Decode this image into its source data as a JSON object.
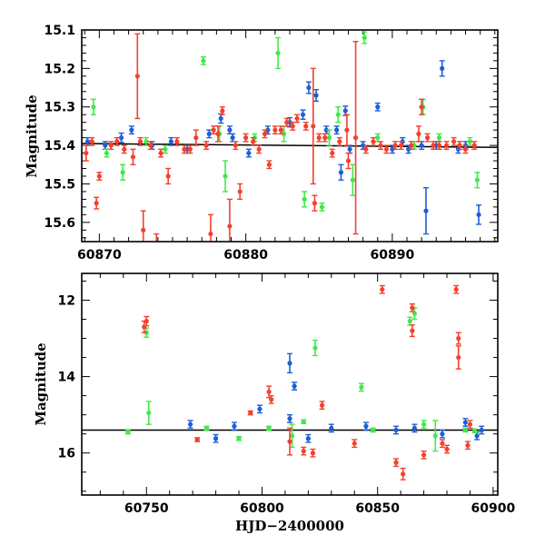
{
  "chart_data": [
    {
      "type": "scatter",
      "panel": "top",
      "title": "",
      "xlabel": "",
      "ylabel": "Magnitude",
      "xlim": [
        60868.8,
        60897.2
      ],
      "ylim": [
        15.1,
        15.65
      ],
      "y_inverted": true,
      "xticks": [
        60870,
        60880,
        60890
      ],
      "yticks": [
        15.1,
        15.2,
        15.3,
        15.4,
        15.5,
        15.6
      ],
      "ytick_labels": [
        "15.1",
        "15.2",
        "15.3",
        "15.4",
        "15.5",
        "15.6"
      ],
      "colors": {
        "blue": "#1d5fd6",
        "green": "#41e84a",
        "red": "#f2412d",
        "fit": "#000000"
      },
      "fit_line": {
        "x": [
          60868.8,
          60897.2
        ],
        "y": [
          15.395,
          15.405
        ]
      },
      "series": [
        {
          "color_key": "blue",
          "points": [
            [
              60869.2,
              15.39,
              0.01
            ],
            [
              60870.4,
              15.4,
              0.01
            ],
            [
              60871.5,
              15.38,
              0.012
            ],
            [
              60872.2,
              15.36,
              0.01
            ],
            [
              60873.6,
              15.4,
              0.01
            ],
            [
              60874.9,
              15.39,
              0.01
            ],
            [
              60876.0,
              15.41,
              0.01
            ],
            [
              60877.5,
              15.37,
              0.01
            ],
            [
              60878.3,
              15.33,
              0.012
            ],
            [
              60879.1,
              15.38,
              0.01
            ],
            [
              60880.2,
              15.42,
              0.01
            ],
            [
              60881.5,
              15.36,
              0.01
            ],
            [
              60883.0,
              15.34,
              0.012
            ],
            [
              60883.9,
              15.32,
              0.012
            ],
            [
              60884.3,
              15.25,
              0.015
            ],
            [
              60884.8,
              15.27,
              0.015
            ],
            [
              60885.5,
              15.36,
              0.01
            ],
            [
              60886.2,
              15.36,
              0.01
            ],
            [
              60886.8,
              15.31,
              0.012
            ],
            [
              60887.1,
              15.41,
              0.01
            ],
            [
              60888.0,
              15.4,
              0.01
            ],
            [
              60889.0,
              15.3,
              0.01
            ],
            [
              60890.0,
              15.41,
              0.01
            ],
            [
              60890.7,
              15.39,
              0.01
            ],
            [
              60891.1,
              15.41,
              0.01
            ],
            [
              60892.0,
              15.4,
              0.01
            ],
            [
              60892.3,
              15.57,
              0.06
            ],
            [
              60893.0,
              15.4,
              0.01
            ],
            [
              60893.4,
              15.2,
              0.02
            ],
            [
              60894.5,
              15.41,
              0.01
            ],
            [
              60895.0,
              15.4,
              0.01
            ],
            [
              60895.9,
              15.58,
              0.025
            ],
            [
              60886.5,
              15.47,
              0.02
            ],
            [
              60878.9,
              15.36,
              0.01
            ]
          ]
        },
        {
          "color_key": "green",
          "points": [
            [
              60869.6,
              15.3,
              0.02
            ],
            [
              60870.5,
              15.42,
              0.01
            ],
            [
              60871.6,
              15.47,
              0.02
            ],
            [
              60873.2,
              15.39,
              0.01
            ],
            [
              60874.5,
              15.41,
              0.01
            ],
            [
              60877.1,
              15.18,
              0.01
            ],
            [
              60878.2,
              15.37,
              0.02
            ],
            [
              60878.6,
              15.48,
              0.04
            ],
            [
              60880.6,
              15.38,
              0.01
            ],
            [
              60882.2,
              15.16,
              0.04
            ],
            [
              60882.6,
              15.37,
              0.02
            ],
            [
              60884.0,
              15.54,
              0.02
            ],
            [
              60885.2,
              15.56,
              0.01
            ],
            [
              60885.7,
              15.38,
              0.02
            ],
            [
              60886.3,
              15.32,
              0.02
            ],
            [
              60887.3,
              15.49,
              0.04
            ],
            [
              60888.1,
              15.12,
              0.015
            ],
            [
              60889.0,
              15.38,
              0.01
            ],
            [
              60891.5,
              15.4,
              0.01
            ],
            [
              60892.1,
              15.3,
              0.02
            ],
            [
              60893.2,
              15.38,
              0.01
            ],
            [
              60895.3,
              15.39,
              0.01
            ],
            [
              60895.8,
              15.49,
              0.02
            ]
          ]
        },
        {
          "color_key": "red",
          "points": [
            [
              60869.1,
              15.42,
              0.02
            ],
            [
              60869.5,
              15.39,
              0.01
            ],
            [
              60869.8,
              15.55,
              0.015
            ],
            [
              60870.0,
              15.48,
              0.01
            ],
            [
              60870.8,
              15.4,
              0.01
            ],
            [
              60871.2,
              15.39,
              0.01
            ],
            [
              60871.7,
              15.41,
              0.01
            ],
            [
              60872.3,
              15.43,
              0.02
            ],
            [
              60872.6,
              15.22,
              0.11
            ],
            [
              60872.8,
              15.39,
              0.01
            ],
            [
              60873.0,
              15.62,
              0.05
            ],
            [
              60873.5,
              15.4,
              0.01
            ],
            [
              60874.2,
              15.42,
              0.01
            ],
            [
              60874.7,
              15.48,
              0.02
            ],
            [
              60875.3,
              15.39,
              0.01
            ],
            [
              60875.8,
              15.41,
              0.01
            ],
            [
              60876.2,
              15.41,
              0.01
            ],
            [
              60876.6,
              15.38,
              0.02
            ],
            [
              60877.3,
              15.4,
              0.01
            ],
            [
              60877.8,
              15.36,
              0.01
            ],
            [
              60878.1,
              15.37,
              0.02
            ],
            [
              60878.4,
              15.31,
              0.01
            ],
            [
              60878.9,
              15.61,
              0.07
            ],
            [
              60879.3,
              15.4,
              0.01
            ],
            [
              60879.6,
              15.52,
              0.02
            ],
            [
              60880.0,
              15.38,
              0.01
            ],
            [
              60880.5,
              15.39,
              0.01
            ],
            [
              60880.9,
              15.41,
              0.01
            ],
            [
              60881.3,
              15.37,
              0.01
            ],
            [
              60881.6,
              15.45,
              0.01
            ],
            [
              60882.0,
              15.36,
              0.01
            ],
            [
              60882.4,
              15.36,
              0.01
            ],
            [
              60882.8,
              15.34,
              0.01
            ],
            [
              60883.2,
              15.35,
              0.01
            ],
            [
              60883.5,
              15.33,
              0.01
            ],
            [
              60884.1,
              15.35,
              0.01
            ],
            [
              60884.6,
              15.35,
              0.15
            ],
            [
              60884.7,
              15.55,
              0.02
            ],
            [
              60885.0,
              15.38,
              0.01
            ],
            [
              60885.4,
              15.38,
              0.01
            ],
            [
              60885.9,
              15.42,
              0.01
            ],
            [
              60886.4,
              15.39,
              0.01
            ],
            [
              60887.0,
              15.44,
              0.02
            ],
            [
              60887.5,
              15.38,
              0.25
            ],
            [
              60888.2,
              15.41,
              0.01
            ],
            [
              60888.7,
              15.39,
              0.01
            ],
            [
              60889.2,
              15.4,
              0.01
            ],
            [
              60889.6,
              15.41,
              0.01
            ],
            [
              60890.2,
              15.4,
              0.01
            ],
            [
              60890.6,
              15.4,
              0.01
            ],
            [
              60891.3,
              15.4,
              0.01
            ],
            [
              60891.8,
              15.37,
              0.02
            ],
            [
              60892.0,
              15.3,
              0.02
            ],
            [
              60892.4,
              15.38,
              0.01
            ],
            [
              60892.8,
              15.4,
              0.01
            ],
            [
              60893.2,
              15.4,
              0.01
            ],
            [
              60893.7,
              15.4,
              0.01
            ],
            [
              60894.2,
              15.39,
              0.01
            ],
            [
              60894.6,
              15.4,
              0.01
            ],
            [
              60895.0,
              15.41,
              0.01
            ],
            [
              60895.6,
              15.4,
              0.01
            ],
            [
              60886.9,
              15.36,
              0.04
            ],
            [
              60877.6,
              15.63,
              0.05
            ],
            [
              60873.9,
              15.68,
              0.05
            ]
          ]
        }
      ]
    },
    {
      "type": "scatter",
      "panel": "bottom",
      "title": "",
      "xlabel": "HJD−2400000",
      "ylabel": "Magnitude",
      "xlim": [
        60722,
        60902
      ],
      "ylim": [
        11.3,
        17.1
      ],
      "y_inverted": true,
      "xticks": [
        60750,
        60800,
        60850,
        60900
      ],
      "yticks": [
        12,
        14,
        16
      ],
      "ytick_labels": [
        "12",
        "14",
        "16"
      ],
      "colors": {
        "blue": "#1d5fd6",
        "green": "#41e84a",
        "red": "#f2412d",
        "fit": "#000000"
      },
      "fit_line": {
        "x": [
          60722,
          60902
        ],
        "y": [
          15.4,
          15.4
        ]
      },
      "series": [
        {
          "color_key": "blue",
          "points": [
            [
              60769,
              15.25,
              0.1
            ],
            [
              60780,
              15.62,
              0.1
            ],
            [
              60788,
              15.3,
              0.1
            ],
            [
              60799,
              14.85,
              0.1
            ],
            [
              60812,
              13.65,
              0.25
            ],
            [
              60814,
              14.25,
              0.1
            ],
            [
              60812,
              15.1,
              0.1
            ],
            [
              60820,
              15.62,
              0.1
            ],
            [
              60830,
              15.35,
              0.1
            ],
            [
              60845,
              15.3,
              0.1
            ],
            [
              60858,
              15.4,
              0.1
            ],
            [
              60866,
              15.35,
              0.1
            ],
            [
              60878,
              15.5,
              0.1
            ],
            [
              60888,
              15.2,
              0.1
            ],
            [
              60893,
              15.55,
              0.1
            ],
            [
              60895,
              15.4,
              0.1
            ]
          ]
        },
        {
          "color_key": "green",
          "points": [
            [
              60742,
              15.45,
              0.05
            ],
            [
              60750,
              12.85,
              0.12
            ],
            [
              60751,
              14.95,
              0.3
            ],
            [
              60776,
              15.35,
              0.05
            ],
            [
              60790,
              15.62,
              0.05
            ],
            [
              60803,
              15.35,
              0.05
            ],
            [
              60813,
              15.55,
              0.3
            ],
            [
              60818,
              15.18,
              0.05
            ],
            [
              60823,
              13.25,
              0.2
            ],
            [
              60843,
              14.28,
              0.1
            ],
            [
              60848,
              15.4,
              0.05
            ],
            [
              60864,
              12.55,
              0.1
            ],
            [
              60866,
              12.35,
              0.15
            ],
            [
              60870,
              15.25,
              0.1
            ],
            [
              60875,
              15.55,
              0.4
            ],
            [
              60888,
              15.4,
              0.05
            ],
            [
              60892,
              15.42,
              0.05
            ]
          ]
        },
        {
          "color_key": "red",
          "points": [
            [
              60749,
              12.7,
              0.15
            ],
            [
              60750,
              12.55,
              0.12
            ],
            [
              60772,
              15.65,
              0.05
            ],
            [
              60795,
              14.95,
              0.05
            ],
            [
              60803,
              14.4,
              0.15
            ],
            [
              60804,
              14.6,
              0.1
            ],
            [
              60812,
              15.7,
              0.35
            ],
            [
              60818,
              15.95,
              0.1
            ],
            [
              60822,
              16.0,
              0.1
            ],
            [
              60826,
              14.75,
              0.1
            ],
            [
              60840,
              15.75,
              0.1
            ],
            [
              60852,
              11.72,
              0.1
            ],
            [
              60858,
              16.25,
              0.1
            ],
            [
              60861,
              16.55,
              0.15
            ],
            [
              60865,
              12.2,
              0.1
            ],
            [
              60865,
              12.8,
              0.15
            ],
            [
              60870,
              16.05,
              0.1
            ],
            [
              60878,
              15.75,
              0.1
            ],
            [
              60880,
              15.9,
              0.1
            ],
            [
              60884,
              11.72,
              0.1
            ],
            [
              60885,
              13.0,
              0.15
            ],
            [
              60885,
              13.5,
              0.3
            ],
            [
              60889,
              15.8,
              0.1
            ],
            [
              60890,
              15.25,
              0.1
            ]
          ]
        }
      ]
    }
  ]
}
